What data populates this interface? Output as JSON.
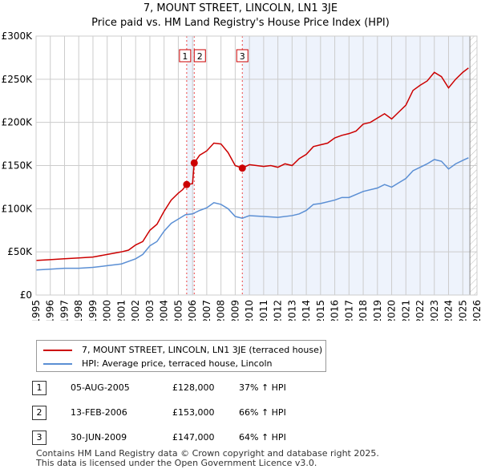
{
  "title": "7, MOUNT STREET, LINCOLN, LN1 3JE",
  "subtitle": "Price paid vs. HM Land Registry's House Price Index (HPI)",
  "chart_data": {
    "type": "line",
    "title": "7, MOUNT STREET, LINCOLN, LN1 3JE",
    "subtitle": "Price paid vs. HM Land Registry's House Price Index (HPI)",
    "xlim": [
      1995,
      2026
    ],
    "ylim": [
      0,
      300000
    ],
    "y_ticks": [
      {
        "v": 0,
        "label": "£0"
      },
      {
        "v": 50000,
        "label": "£50K"
      },
      {
        "v": 100000,
        "label": "£100K"
      },
      {
        "v": 150000,
        "label": "£150K"
      },
      {
        "v": 200000,
        "label": "£200K"
      },
      {
        "v": 250000,
        "label": "£250K"
      },
      {
        "v": 300000,
        "label": "£300K"
      }
    ],
    "x_ticks": [
      "1995",
      "1996",
      "1997",
      "1998",
      "1999",
      "2000",
      "2001",
      "2002",
      "2003",
      "2004",
      "2005",
      "2006",
      "2007",
      "2008",
      "2009",
      "2010",
      "2011",
      "2012",
      "2013",
      "2014",
      "2015",
      "2016",
      "2017",
      "2018",
      "2019",
      "2020",
      "2021",
      "2022",
      "2023",
      "2024",
      "2025",
      "2026"
    ],
    "grid": true,
    "series": [
      {
        "name": "7, MOUNT STREET, LINCOLN, LN1 3JE (terraced house)",
        "color": "#cc0000",
        "x": [
          1995,
          1996,
          1997,
          1998,
          1999,
          2000,
          2001,
          2001.5,
          2002,
          2002.5,
          2003,
          2003.5,
          2004,
          2004.5,
          2005,
          2005.3,
          2005.59,
          2006.0,
          2006.12,
          2006.5,
          2007,
          2007.5,
          2008,
          2008.5,
          2009,
          2009.5,
          2010,
          2010.5,
          2011,
          2011.5,
          2012,
          2012.5,
          2013,
          2013.5,
          2014,
          2014.5,
          2015,
          2015.5,
          2016,
          2016.5,
          2017,
          2017.5,
          2018,
          2018.5,
          2019,
          2019.5,
          2020,
          2020.5,
          2021,
          2021.5,
          2022,
          2022.5,
          2023,
          2023.5,
          2024,
          2024.5,
          2025,
          2025.4
        ],
        "y": [
          40000,
          41000,
          42000,
          43000,
          44000,
          47000,
          50000,
          52000,
          58000,
          62000,
          75000,
          82000,
          97000,
          110000,
          118000,
          122000,
          128000,
          129000,
          153000,
          162000,
          167000,
          176000,
          175000,
          165000,
          150000,
          147000,
          151000,
          150000,
          149000,
          150000,
          148000,
          152000,
          150000,
          158000,
          163000,
          172000,
          174000,
          176000,
          182000,
          185000,
          187000,
          190000,
          198000,
          200000,
          205000,
          210000,
          204000,
          212000,
          220000,
          237000,
          243000,
          248000,
          258000,
          253000,
          240000,
          250000,
          258000,
          263000
        ]
      },
      {
        "name": "HPI: Average price, terraced house, Lincoln",
        "color": "#5b8fd4",
        "x": [
          1995,
          1996,
          1997,
          1998,
          1999,
          2000,
          2001,
          2002,
          2002.5,
          2003,
          2003.5,
          2004,
          2004.5,
          2005,
          2005.5,
          2006,
          2006.5,
          2007,
          2007.5,
          2008,
          2008.5,
          2009,
          2009.5,
          2010,
          2011,
          2012,
          2013,
          2013.5,
          2014,
          2014.5,
          2015,
          2016,
          2016.5,
          2017,
          2018,
          2019,
          2019.5,
          2020,
          2020.5,
          2021,
          2021.5,
          2022,
          2022.5,
          2023,
          2023.5,
          2024,
          2024.5,
          2025,
          2025.4
        ],
        "y": [
          29000,
          30000,
          31000,
          31000,
          32000,
          34000,
          36000,
          42000,
          47000,
          57000,
          62000,
          74000,
          83000,
          88000,
          93000,
          94000,
          98000,
          101000,
          107000,
          105000,
          100000,
          91000,
          89000,
          92000,
          91000,
          90000,
          92000,
          94000,
          98000,
          105000,
          106000,
          110000,
          113000,
          113000,
          120000,
          124000,
          128000,
          125000,
          130000,
          135000,
          144000,
          148000,
          152000,
          157000,
          155000,
          146000,
          152000,
          156000,
          159000
        ]
      }
    ],
    "sales": [
      {
        "label": "1",
        "x": 2005.59,
        "y": 128000
      },
      {
        "label": "2",
        "x": 2006.12,
        "y": 153000
      },
      {
        "label": "3",
        "x": 2009.5,
        "y": 147000
      }
    ],
    "legend_position": "below"
  },
  "legend": [
    "7, MOUNT STREET, LINCOLN, LN1 3JE (terraced house)",
    "HPI: Average price, terraced house, Lincoln"
  ],
  "transactions": [
    {
      "num": "1",
      "date": "05-AUG-2005",
      "price": "£128,000",
      "hpi": "37% ↑ HPI"
    },
    {
      "num": "2",
      "date": "13-FEB-2006",
      "price": "£153,000",
      "hpi": "66% ↑ HPI"
    },
    {
      "num": "3",
      "date": "30-JUN-2009",
      "price": "£147,000",
      "hpi": "64% ↑ HPI"
    }
  ],
  "footer": [
    "Contains HM Land Registry data © Crown copyright and database right 2025.",
    "This data is licensed under the Open Government Licence v3.0."
  ]
}
